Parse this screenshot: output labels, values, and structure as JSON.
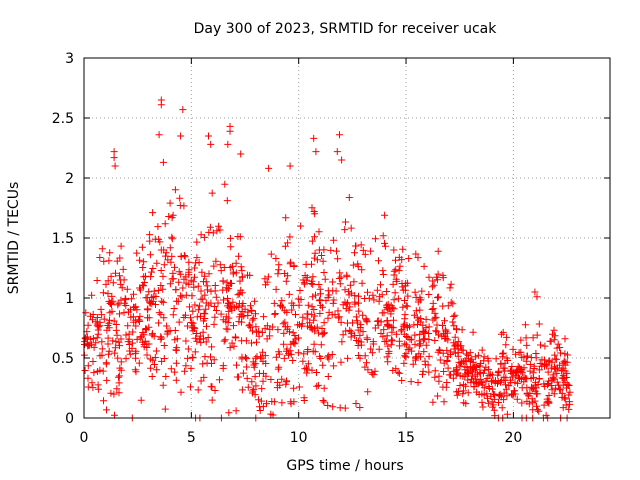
{
  "chart_data": {
    "type": "scatter",
    "title": "Day 300 of 2023, SRMTID for receiver ucak",
    "xlabel": "GPS time / hours",
    "ylabel": "SRMTID / TECUs",
    "xlim": [
      0,
      24.5
    ],
    "ylim": [
      0,
      3
    ],
    "x_ticks": [
      0,
      5,
      10,
      15,
      20
    ],
    "x_tick_labels": [
      "0",
      "5",
      "10",
      "15",
      "20"
    ],
    "y_ticks": [
      0,
      0.5,
      1,
      1.5,
      2,
      2.5,
      3
    ],
    "y_tick_labels": [
      "0",
      "0.5",
      "1",
      "1.5",
      "2",
      "2.5",
      "3"
    ],
    "grid": true,
    "marker": "plus",
    "colors": {
      "series": "#ff0000",
      "grid": "#a0a0a0",
      "axis": "#000000"
    },
    "series": [
      {
        "name": "SRMTID",
        "envelope": {
          "hours": [
            0,
            0.5,
            1,
            1.5,
            2,
            2.5,
            3,
            3.5,
            4,
            4.5,
            5,
            5.5,
            6,
            6.5,
            7,
            7.5,
            8,
            8.5,
            9,
            9.5,
            10,
            10.5,
            11,
            11.5,
            12,
            12.5,
            13,
            13.5,
            14,
            14.5,
            15,
            15.5,
            16,
            16.5,
            17,
            17.5,
            18,
            18.5,
            19,
            19.5,
            20,
            20.5,
            21,
            21.5,
            22,
            22.5,
            23
          ],
          "typical_tecu": [
            0.55,
            0.6,
            0.7,
            0.75,
            0.7,
            0.75,
            0.85,
            0.9,
            0.95,
            1.0,
            0.8,
            0.85,
            0.9,
            0.95,
            1.0,
            0.8,
            0.5,
            0.6,
            0.75,
            0.8,
            0.85,
            0.9,
            0.9,
            0.85,
            0.9,
            0.85,
            0.85,
            0.85,
            0.9,
            0.85,
            0.8,
            0.75,
            0.7,
            0.7,
            0.65,
            0.5,
            0.4,
            0.3,
            0.25,
            0.4,
            0.3,
            0.35,
            0.35,
            0.3,
            0.35,
            0.35,
            0.3
          ],
          "spread_tecu": [
            0.3,
            0.35,
            0.5,
            0.6,
            0.45,
            0.5,
            0.6,
            0.7,
            0.7,
            0.6,
            0.45,
            0.5,
            0.6,
            0.65,
            0.6,
            0.45,
            0.35,
            0.5,
            0.55,
            0.55,
            0.6,
            0.65,
            0.6,
            0.55,
            0.6,
            0.55,
            0.5,
            0.5,
            0.45,
            0.45,
            0.45,
            0.4,
            0.4,
            0.4,
            0.35,
            0.25,
            0.2,
            0.2,
            0.15,
            0.25,
            0.2,
            0.25,
            0.3,
            0.25,
            0.25,
            0.25,
            0.2
          ]
        },
        "peaks": [
          {
            "x": 1.4,
            "y": 2.22
          },
          {
            "x": 1.4,
            "y": 2.17
          },
          {
            "x": 1.45,
            "y": 2.1
          },
          {
            "x": 3.6,
            "y": 2.65
          },
          {
            "x": 3.6,
            "y": 2.61
          },
          {
            "x": 3.5,
            "y": 2.36
          },
          {
            "x": 3.7,
            "y": 2.13
          },
          {
            "x": 4.5,
            "y": 2.35
          },
          {
            "x": 4.6,
            "y": 2.57
          },
          {
            "x": 5.8,
            "y": 2.35
          },
          {
            "x": 5.9,
            "y": 2.28
          },
          {
            "x": 6.8,
            "y": 2.43
          },
          {
            "x": 6.8,
            "y": 2.39
          },
          {
            "x": 6.7,
            "y": 2.28
          },
          {
            "x": 7.3,
            "y": 2.2
          },
          {
            "x": 8.6,
            "y": 2.08
          },
          {
            "x": 9.6,
            "y": 2.1
          },
          {
            "x": 10.7,
            "y": 2.33
          },
          {
            "x": 10.8,
            "y": 2.22
          },
          {
            "x": 11.9,
            "y": 2.36
          },
          {
            "x": 11.8,
            "y": 2.22
          },
          {
            "x": 12.0,
            "y": 2.15
          },
          {
            "x": 14.0,
            "y": 1.69
          },
          {
            "x": 16.5,
            "y": 1.39
          },
          {
            "x": 21.0,
            "y": 1.05
          },
          {
            "x": 21.1,
            "y": 1.01
          }
        ],
        "gap_markers_x": [
          2.25,
          5.2,
          5.4,
          6.4,
          8.0,
          19.3,
          19.5,
          20.4,
          20.6,
          20.9,
          21.4,
          21.6,
          22.2,
          22.5
        ]
      }
    ]
  }
}
